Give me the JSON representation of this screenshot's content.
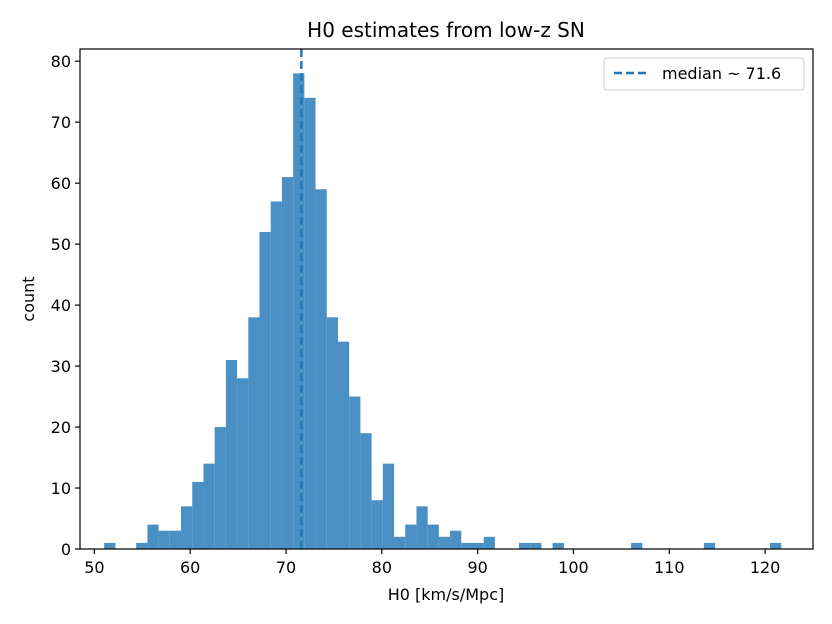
{
  "chart_data": {
    "type": "bar",
    "title": "H0 estimates from low-z SN",
    "xlabel": "H0 [km/s/Mpc]",
    "ylabel": "count",
    "xlim": [
      48.5,
      125.0
    ],
    "ylim": [
      0,
      82
    ],
    "xticks": [
      50,
      60,
      70,
      80,
      90,
      100,
      110,
      120
    ],
    "yticks": [
      0,
      10,
      20,
      30,
      40,
      50,
      60,
      70,
      80
    ],
    "bin_width": 1.17,
    "bins": [
      {
        "x": 51.61,
        "count": 1
      },
      {
        "x": 54.95,
        "count": 1
      },
      {
        "x": 56.12,
        "count": 4
      },
      {
        "x": 57.29,
        "count": 3
      },
      {
        "x": 58.46,
        "count": 3
      },
      {
        "x": 59.63,
        "count": 7
      },
      {
        "x": 60.8,
        "count": 11
      },
      {
        "x": 61.97,
        "count": 14
      },
      {
        "x": 63.14,
        "count": 20
      },
      {
        "x": 64.31,
        "count": 31
      },
      {
        "x": 65.48,
        "count": 28
      },
      {
        "x": 66.65,
        "count": 38
      },
      {
        "x": 67.82,
        "count": 52
      },
      {
        "x": 68.99,
        "count": 57
      },
      {
        "x": 70.16,
        "count": 61
      },
      {
        "x": 71.33,
        "count": 78
      },
      {
        "x": 72.5,
        "count": 74
      },
      {
        "x": 73.67,
        "count": 59
      },
      {
        "x": 74.84,
        "count": 38
      },
      {
        "x": 76.01,
        "count": 34
      },
      {
        "x": 77.18,
        "count": 25
      },
      {
        "x": 78.35,
        "count": 19
      },
      {
        "x": 79.52,
        "count": 8
      },
      {
        "x": 80.69,
        "count": 14
      },
      {
        "x": 81.86,
        "count": 2
      },
      {
        "x": 83.03,
        "count": 4
      },
      {
        "x": 84.2,
        "count": 7
      },
      {
        "x": 85.37,
        "count": 4
      },
      {
        "x": 86.54,
        "count": 2
      },
      {
        "x": 87.71,
        "count": 3
      },
      {
        "x": 88.88,
        "count": 1
      },
      {
        "x": 90.05,
        "count": 1
      },
      {
        "x": 91.22,
        "count": 2
      },
      {
        "x": 94.9,
        "count": 1
      },
      {
        "x": 96.07,
        "count": 1
      },
      {
        "x": 98.41,
        "count": 1
      },
      {
        "x": 106.6,
        "count": 1
      },
      {
        "x": 114.2,
        "count": 1
      },
      {
        "x": 121.1,
        "count": 1
      }
    ],
    "median_line": {
      "x": 71.6,
      "label": "median ~ 71.6"
    },
    "legend_placement": "top-right",
    "grid": false,
    "colors": {
      "bars": "#4a90c4",
      "median_line": "#1f77b4"
    }
  }
}
